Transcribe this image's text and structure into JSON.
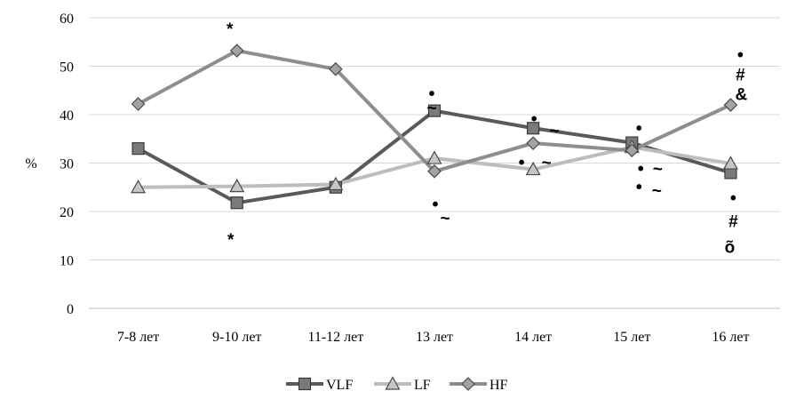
{
  "chart_data": {
    "type": "line",
    "categories": [
      "7-8 лет",
      "9-10 лет",
      "11-12 лет",
      "13 лет",
      "14 лет",
      "15 лет",
      "16 лет"
    ],
    "ylabel": "%",
    "ylim": [
      0,
      60
    ],
    "yticks": [
      "0",
      "10",
      "20",
      "30",
      "40",
      "50",
      "60"
    ],
    "grid": true,
    "legend_position": "bottom",
    "series": [
      {
        "name": "VLF",
        "marker": "square",
        "color": "#5a5a5a",
        "values": [
          33,
          21.8,
          25,
          40.8,
          37.2,
          34.2,
          28
        ]
      },
      {
        "name": "LF",
        "marker": "triangle",
        "color": "#bdbdbd",
        "values": [
          25,
          25.2,
          25.6,
          31,
          28.7,
          33.3,
          29.9
        ]
      },
      {
        "name": "HF",
        "marker": "diamond",
        "color": "#8e8e8e",
        "values": [
          42.2,
          53.2,
          49.4,
          28.3,
          34.1,
          32.6,
          42
        ]
      }
    ],
    "annotations": [
      {
        "category": "9-10 лет",
        "value": 57.6,
        "text": "*"
      },
      {
        "category": "9-10 лет",
        "value": 14.1,
        "text": "*"
      },
      {
        "category": "13 лет",
        "value": 44.2,
        "text": "•"
      },
      {
        "category": "13 лет",
        "value": 41.3,
        "text": "~"
      },
      {
        "category": "13 лет",
        "value": 21.4,
        "text": "•"
      },
      {
        "category": "13 лет",
        "value": 18.5,
        "text": "~"
      },
      {
        "category": "14 лет",
        "value": 39,
        "text": "•"
      },
      {
        "category": "14 лет",
        "value": 36.6,
        "text": "~"
      },
      {
        "category": "14 лет",
        "value": 30,
        "text": "•"
      },
      {
        "category": "14 лет",
        "value": 30,
        "text": "~"
      },
      {
        "category": "15 лет",
        "value": 37.1,
        "text": "•"
      },
      {
        "category": "15 лет",
        "value": 28.7,
        "text": "•"
      },
      {
        "category": "15 лет",
        "value": 28.7,
        "text": "~"
      },
      {
        "category": "15 лет",
        "value": 25,
        "text": "•"
      },
      {
        "category": "15 лет",
        "value": 24.2,
        "text": "~"
      },
      {
        "category": "16 лет",
        "value": 52.2,
        "text": "•"
      },
      {
        "category": "16 лет",
        "value": 48.2,
        "text": "#"
      },
      {
        "category": "16 лет",
        "value": 44.1,
        "text": "&"
      },
      {
        "category": "16 лет",
        "value": 22.7,
        "text": "•"
      },
      {
        "category": "16 лет",
        "value": 17.9,
        "text": "#"
      },
      {
        "category": "16 лет",
        "value": 12.6,
        "text": "õ"
      }
    ]
  }
}
